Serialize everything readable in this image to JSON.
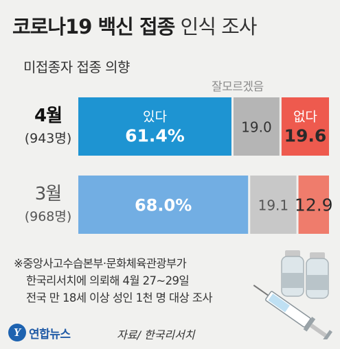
{
  "header": {
    "title_bold": "코로나19 백신 접종",
    "title_light": "인식 조사",
    "subtitle": "미접종자 접종 의향"
  },
  "chart_data": {
    "type": "bar",
    "stacked": true,
    "orientation": "horizontal",
    "categories": [
      {
        "month": "4월",
        "count": "(943명)"
      },
      {
        "month": "3월",
        "count": "(968명)"
      }
    ],
    "series": [
      {
        "name": "있다",
        "values": [
          61.4,
          68.0
        ],
        "labels": [
          "61.4%",
          "68.0%"
        ],
        "colors": [
          "#1e94d2",
          "#72aee3"
        ]
      },
      {
        "name": "잘모르겠음",
        "values": [
          19.0,
          19.1
        ],
        "labels": [
          "19.0",
          "19.1"
        ],
        "colors": [
          "#b5b5b5",
          "#c8c8c8"
        ]
      },
      {
        "name": "없다",
        "values": [
          19.6,
          12.9
        ],
        "labels": [
          "19.6",
          "12.9"
        ],
        "colors": [
          "#ee5a4e",
          "#ef7c6c"
        ]
      }
    ],
    "legend_inline": {
      "yes": "있다",
      "unsure": "잘모르겠음",
      "no": "없다"
    }
  },
  "footnote": {
    "line1": "※중앙사고수습본부·문화체육관광부가",
    "line2": "한국리서치에 의뢰해 4월 27~29일",
    "line3": "전국 만 18세 이상 성인 1천 명 대상 조사"
  },
  "brand": {
    "logo_mark": "Y",
    "logo_text": "연합뉴스"
  },
  "source": "자료/ 한국리서치"
}
